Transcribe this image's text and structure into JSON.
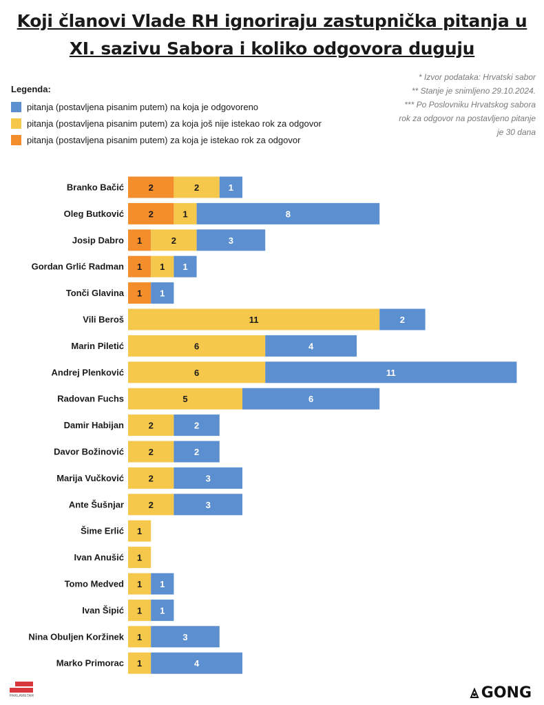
{
  "title_line1": "Koji članovi Vlade RH ignoriraju zastupnička pitanja u",
  "title_line2": "XI. sazivu Sabora i koliko odgovora duguju",
  "legend": {
    "title": "Legenda:",
    "items": [
      {
        "label": "pitanja (postavljena pisanim putem) na koja je odgovoreno",
        "color": "#5b8fcf"
      },
      {
        "label": "pitanja (postavljena pisanim putem) za koja još nije istekao rok za odgovor",
        "color": "#f5c84c"
      },
      {
        "label": "pitanja (postavljena pisanim putem) za koja je istekao rok za odgovor",
        "color": "#f48d2b"
      }
    ]
  },
  "notes": {
    "source": "* Izvor podataka: Hrvatski sabor",
    "snapshot": "** Stanje je snimljeno 29.10.2024.",
    "rule": "*** Po Poslovniku Hrvatskog sabora rok za odgovor na postavljeno pitanje je 30 dana"
  },
  "chart_data": {
    "type": "bar",
    "orientation": "horizontal",
    "stacked": true,
    "categories": [
      "Branko Bačić",
      "Oleg Butković",
      "Josip Dabro",
      "Gordan Grlić Radman",
      "Tonči Glavina",
      "Vili Beroš",
      "Marin Piletić",
      "Andrej Plenković",
      "Radovan Fuchs",
      "Damir Habijan",
      "Davor Božinović",
      "Marija Vučković",
      "Ante Šušnjar",
      "Šime Erlić",
      "Ivan Anušić",
      "Tomo Medved",
      "Ivan Šipić",
      "Nina Obuljen Koržinek",
      "Marko Primorac"
    ],
    "series": [
      {
        "name": "pitanja (postavljena pisanim putem) za koja je istekao rok za odgovor",
        "color": "#f48d2b",
        "values": [
          2,
          2,
          1,
          1,
          1,
          0,
          0,
          0,
          0,
          0,
          0,
          0,
          0,
          0,
          0,
          0,
          0,
          0,
          0
        ]
      },
      {
        "name": "pitanja (postavljena pisanim putem) za koja još nije istekao rok za odgovor",
        "color": "#f5c84c",
        "values": [
          2,
          1,
          2,
          1,
          0,
          11,
          6,
          6,
          5,
          2,
          2,
          2,
          2,
          1,
          1,
          1,
          1,
          1,
          1
        ]
      },
      {
        "name": "pitanja (postavljena pisanim putem) na koja je odgovoreno",
        "color": "#5b8fcf",
        "values": [
          1,
          8,
          3,
          1,
          1,
          2,
          4,
          11,
          6,
          2,
          2,
          3,
          3,
          0,
          0,
          1,
          1,
          3,
          4
        ]
      }
    ],
    "data_labels": true,
    "gridlines": false,
    "legend_position": "top-left"
  },
  "logos": {
    "left": "PARLAMETAR",
    "right": "GONG"
  }
}
